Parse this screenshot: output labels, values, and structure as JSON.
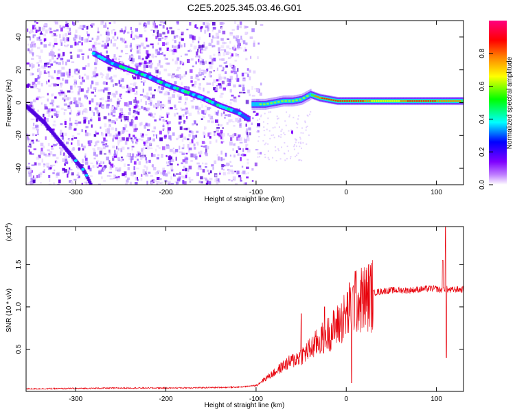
{
  "title": "C2E5.2025.345.03.46.G01",
  "chart_data": [
    {
      "type": "heatmap",
      "xlabel": "Height of straight line (km)",
      "ylabel": "Frequency (Hz)",
      "xlim": [
        -355,
        130
      ],
      "ylim": [
        -50,
        50
      ],
      "xticks": [
        -300,
        -200,
        -100,
        0,
        100
      ],
      "xtick_labels": [
        "-300",
        "-200",
        "-100",
        "0",
        "100"
      ],
      "yticks": [
        -40,
        -20,
        0,
        20,
        40
      ],
      "ytick_labels": [
        "-40",
        "-20",
        "0",
        "20",
        "40"
      ],
      "colorbar": {
        "label": "Normalized spectral amplitude",
        "range": [
          0,
          1
        ],
        "ticks": [
          0.0,
          0.2,
          0.4,
          0.6,
          0.8
        ],
        "tick_labels": [
          "0.0",
          "0.2",
          "0.4",
          "0.6",
          "0.8"
        ],
        "colors": [
          "#ffffff",
          "#7f00ff",
          "#0000ff",
          "#00ffff",
          "#00ff00",
          "#ffff00",
          "#ff8000",
          "#ff0000",
          "#ff0080"
        ]
      },
      "ridge_segments": [
        {
          "x": [
            -280,
            -260,
            -240,
            -220,
            -200,
            -180,
            -160,
            -140,
            -120,
            -108
          ],
          "freq": [
            30,
            24,
            20,
            16,
            11,
            7,
            3,
            -2,
            -6,
            -10
          ]
        },
        {
          "x": [
            -105,
            -90,
            -80,
            -70,
            -60,
            -50,
            -40,
            -30,
            -20,
            -10,
            0,
            20,
            60,
            100,
            130
          ],
          "freq": [
            -1,
            -1,
            0,
            1,
            1,
            2,
            5,
            3,
            2,
            1,
            1,
            1,
            1,
            1,
            1
          ]
        },
        {
          "x": [
            -355,
            -335,
            -320,
            -305,
            -290,
            -283
          ],
          "freq": [
            -2,
            -12,
            -22,
            -32,
            -42,
            -50
          ]
        }
      ],
      "grid": false
    },
    {
      "type": "line",
      "xlabel": "Height of straight line (km)",
      "ylabel": "SNR (10 * v/v)",
      "y_multiplier_label": "(x10^4)",
      "xlim": [
        -355,
        130
      ],
      "ylim": [
        0,
        1.95
      ],
      "xticks": [
        -300,
        -200,
        -100,
        0,
        100
      ],
      "xtick_labels": [
        "-300",
        "-200",
        "-100",
        "0",
        "100"
      ],
      "yticks": [
        0.5,
        1.0,
        1.5
      ],
      "ytick_labels": [
        "0.5",
        "1.0",
        "1.5"
      ],
      "series": [
        {
          "color": "#e8000a",
          "envelope_x": [
            -355,
            -300,
            -250,
            -200,
            -150,
            -120,
            -100,
            -90,
            -80,
            -70,
            -60,
            -50,
            -40,
            -30,
            -20,
            -10,
            0,
            5,
            10,
            20,
            30,
            40,
            50,
            60,
            70,
            80,
            90,
            100,
            105,
            110,
            115,
            120,
            130
          ],
          "envelope_y": [
            0.03,
            0.035,
            0.04,
            0.04,
            0.045,
            0.05,
            0.07,
            0.15,
            0.22,
            0.3,
            0.36,
            0.42,
            0.5,
            0.6,
            0.68,
            0.78,
            0.9,
            1.0,
            1.05,
            1.1,
            1.15,
            1.17,
            1.18,
            1.18,
            1.18,
            1.19,
            1.2,
            1.2,
            1.18,
            1.2,
            1.18,
            1.19,
            1.19
          ],
          "spikes": [
            {
              "x": 10,
              "y": 1.42
            },
            {
              "x": -50,
              "y": 0.92
            },
            {
              "x": -24,
              "y": 1.0
            },
            {
              "x": 6,
              "y": 0.1
            },
            {
              "x": 110,
              "y": 1.95
            },
            {
              "x": 111,
              "y": 0.4
            },
            {
              "x": 107,
              "y": 1.55
            }
          ]
        }
      ],
      "grid": false
    }
  ]
}
